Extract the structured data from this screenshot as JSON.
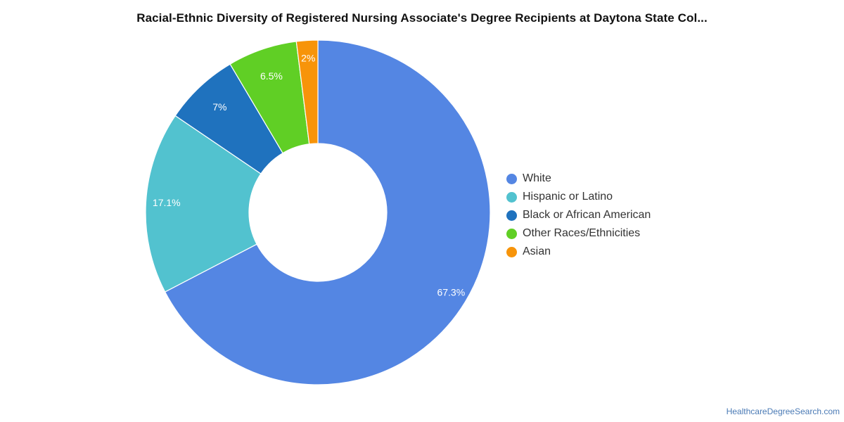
{
  "chart_data": {
    "type": "pie",
    "title": "Racial-Ethnic Diversity of Registered Nursing Associate's Degree Recipients at Daytona State Col...",
    "categories": [
      "White",
      "Hispanic or Latino",
      "Black or African American",
      "Other Races/Ethnicities",
      "Asian"
    ],
    "values": [
      67.3,
      17.1,
      7.0,
      6.5,
      2.0
    ],
    "value_labels": [
      "67.3%",
      "17.1%",
      "7%",
      "6.5%",
      "2%"
    ],
    "colors": [
      "#5486e3",
      "#52c2cf",
      "#1f72be",
      "#60cf25",
      "#f7940a"
    ],
    "donut": true,
    "legend_position": "right",
    "unit": "%"
  },
  "footer": {
    "source": "HealthcareDegreeSearch.com"
  }
}
